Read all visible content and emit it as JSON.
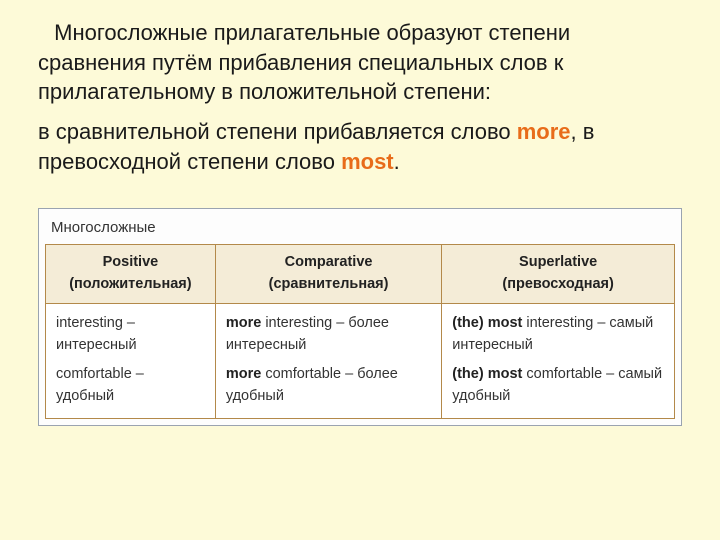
{
  "intro": " Многосложные прилагательные образуют степени сравнения путём прибавления специальных слов к прилагательному в положительной степени:",
  "sub_pre": "в сравнительной степени прибавляется слово ",
  "kw1": "more",
  "sub_mid": ", в превосходной степени слово ",
  "kw2": "most",
  "sub_end": ".",
  "table": {
    "title": "Многосложные",
    "headers": {
      "c1_line1": "Positive",
      "c1_line2": "(положительная)",
      "c2_line1": "Comparative",
      "c2_line2": "(сравнительная)",
      "c3_line1": "Superlative",
      "c3_line2": "(превосходная)"
    },
    "r1": {
      "c1": "interesting – интересный",
      "c2_b": "more",
      "c2_rest": " interesting – более интересный",
      "c3_b": "(the) most",
      "c3_rest": " interesting – самый интересный"
    },
    "r2": {
      "c1": "comfortable  – удобный",
      "c2_b": "more",
      "c2_rest": " comfortable – более удобный",
      "c3_b": "(the) most",
      "c3_rest": " comfortable – самый удобный"
    }
  },
  "colors": {
    "bg": "#fdfad8",
    "keyword": "#e86c1a",
    "th_bg": "#f4ecd7",
    "border": "#b3894a",
    "outer_border": "#9aa3b0"
  }
}
